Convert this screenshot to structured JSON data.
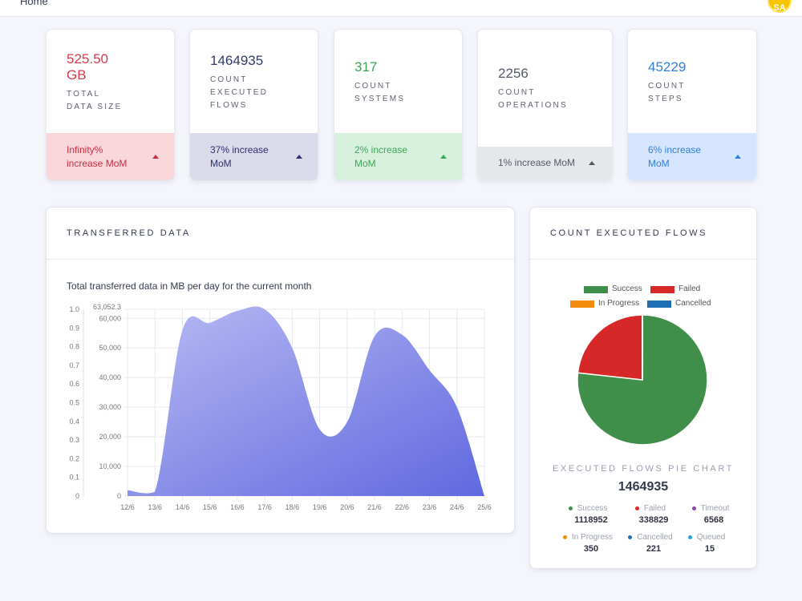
{
  "topbar": {
    "home_label": "Home",
    "avatar_initials": "SA"
  },
  "cards": [
    {
      "value": "525.50\nGB",
      "label": "TOTAL\nDATA SIZE",
      "footer": "Infinity%\nincrease MoM",
      "value_color": "#d73a4a",
      "footer_bg": "#f8d7da",
      "footer_color": "#cc2d3f",
      "arrow": "up"
    },
    {
      "value": "1464935",
      "label": "COUNT\nEXECUTED\nFLOWS",
      "footer": "37% increase\nMoM",
      "value_color": "#333a6b",
      "footer_bg": "#dadaea",
      "footer_color": "#2f2f6b",
      "arrow": "up"
    },
    {
      "value": "317",
      "label": "COUNT\nSYSTEMS",
      "footer": "2% increase\nMoM",
      "value_color": "#3aa655",
      "footer_bg": "#d8f1de",
      "footer_color": "#3aa655",
      "arrow": "up"
    },
    {
      "value": "2256",
      "label": "COUNT\nOPERATIONS",
      "footer": "1% increase MoM",
      "value_color": "#555a66",
      "footer_bg": "#e6e7ea",
      "footer_color": "#555a66",
      "arrow": "up"
    },
    {
      "value": "45229",
      "label": "COUNT\nSTEPS",
      "footer": "6% increase\nMoM",
      "value_color": "#2f7fe0",
      "footer_bg": "#d4e5fd",
      "footer_color": "#2f7fe0",
      "arrow": "up"
    }
  ],
  "transfer_panel": {
    "title": "TRANSFERRED DATA",
    "subtitle": "Total transferred data in MB per day for the current month"
  },
  "flows_panel": {
    "title": "COUNT EXECUTED FLOWS",
    "legend": [
      {
        "name": "Success",
        "color": "#3f8e4a"
      },
      {
        "name": "Failed",
        "color": "#d62828"
      },
      {
        "name": "In Progress",
        "color": "#f28c0f"
      },
      {
        "name": "Cancelled",
        "color": "#1f6fb5"
      }
    ],
    "caption": "EXECUTED FLOWS PIE CHART",
    "total": "1464935",
    "stats": [
      {
        "name": "Success",
        "value": "1118952",
        "color": "#3f8e4a"
      },
      {
        "name": "Failed",
        "value": "338829",
        "color": "#d62828"
      },
      {
        "name": "Timeout",
        "value": "6568",
        "color": "#8e44ad"
      },
      {
        "name": "In Progress",
        "value": "350",
        "color": "#f28c0f"
      },
      {
        "name": "Cancelled",
        "value": "221",
        "color": "#1f6fb5"
      },
      {
        "name": "Queued",
        "value": "15",
        "color": "#1ea0e0"
      }
    ]
  },
  "chart_data": [
    {
      "type": "area",
      "title": "Total transferred data in MB per day for the current month",
      "categories": [
        "12/6",
        "13/6",
        "14/6",
        "15/6",
        "16/6",
        "17/6",
        "18/6",
        "19/6",
        "20/6",
        "21/6",
        "22/6",
        "23/6",
        "24/6",
        "25/6"
      ],
      "series": [
        {
          "values": [
            2000,
            1500,
            56000,
            58500,
            62500,
            63052,
            50000,
            22500,
            25000,
            54000,
            54500,
            42500,
            30000,
            0
          ]
        }
      ],
      "y_left_ticks": [
        "0",
        "10,000",
        "20,000",
        "30,000",
        "40,000",
        "50,000",
        "60,000",
        "63,052.3"
      ],
      "y_left_range": [
        0,
        63052.3
      ],
      "y_right_ticks": [
        "0",
        "0.1",
        "0.2",
        "0.3",
        "0.4",
        "0.5",
        "0.6",
        "0.7",
        "0.8",
        "0.9",
        "1.0"
      ],
      "y_right_range": [
        0,
        1
      ],
      "grid": true,
      "colors": {
        "fill_light": "#b9bbf2",
        "fill_dark": "#6068e0"
      }
    },
    {
      "type": "pie",
      "title": "EXECUTED FLOWS PIE CHART",
      "categories": [
        "Success",
        "Failed",
        "In Progress",
        "Cancelled"
      ],
      "values": [
        1118952,
        338829,
        350,
        221
      ],
      "colors": [
        "#3f8e4a",
        "#d62828",
        "#f28c0f",
        "#1f6fb5"
      ],
      "legend": "top"
    }
  ]
}
